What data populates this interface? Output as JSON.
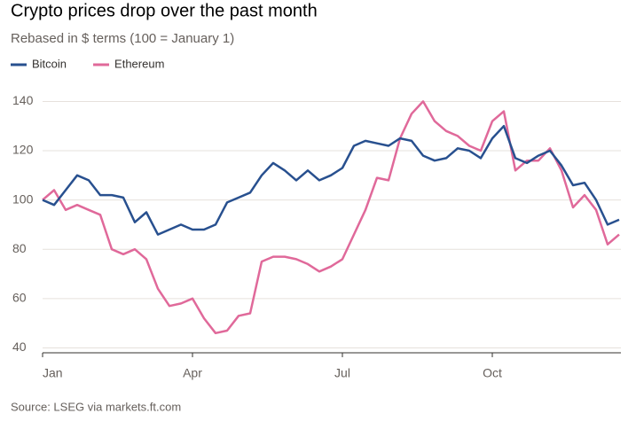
{
  "chart_data": {
    "type": "line",
    "title": "Crypto prices drop over the past month",
    "subtitle": "Rebased in $ terms (100 = January 1)",
    "source": "Source: LSEG via markets.ft.com",
    "categories": [
      "Jan",
      null,
      null,
      null,
      null,
      null,
      null,
      null,
      null,
      null,
      null,
      null,
      null,
      "Apr",
      null,
      null,
      null,
      null,
      null,
      null,
      null,
      null,
      null,
      null,
      null,
      null,
      "Jul",
      null,
      null,
      null,
      null,
      null,
      null,
      null,
      null,
      null,
      null,
      null,
      null,
      "Oct",
      null,
      null,
      null,
      null,
      null,
      null,
      null,
      null,
      null,
      null,
      null
    ],
    "series": [
      {
        "name": "Bitcoin",
        "color": "#28508f",
        "values": [
          100,
          98,
          104,
          110,
          108,
          102,
          102,
          101,
          91,
          95,
          86,
          88,
          90,
          88,
          88,
          90,
          99,
          101,
          103,
          110,
          115,
          112,
          108,
          112,
          108,
          110,
          113,
          122,
          124,
          123,
          122,
          125,
          124,
          118,
          116,
          117,
          121,
          120,
          117,
          125,
          130,
          117,
          115,
          118,
          120,
          114,
          106,
          107,
          100,
          90,
          92
        ]
      },
      {
        "name": "Ethereum",
        "color": "#e0699a",
        "values": [
          100,
          104,
          96,
          98,
          96,
          94,
          80,
          78,
          80,
          76,
          64,
          57,
          58,
          60,
          52,
          46,
          47,
          53,
          54,
          75,
          77,
          77,
          76,
          74,
          71,
          73,
          76,
          86,
          96,
          109,
          108,
          125,
          135,
          140,
          132,
          128,
          126,
          122,
          120,
          132,
          136,
          112,
          116,
          116,
          121,
          112,
          97,
          102,
          96,
          82,
          86
        ]
      }
    ],
    "ylim": [
      38,
      146
    ],
    "yticks": [
      40,
      60,
      80,
      100,
      120,
      140
    ],
    "grid": true
  }
}
